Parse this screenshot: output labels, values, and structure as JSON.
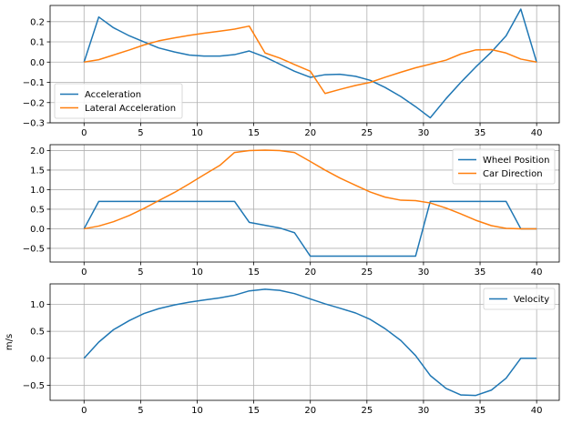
{
  "chart_data": [
    {
      "type": "line",
      "xlim": [
        -3,
        42
      ],
      "ylim": [
        -0.3,
        0.28
      ],
      "xticks": [
        0,
        5,
        10,
        15,
        20,
        25,
        30,
        35,
        40
      ],
      "xtick_labels": [
        "0",
        "5",
        "10",
        "15",
        "20",
        "25",
        "30",
        "35",
        "40"
      ],
      "yticks": [
        -0.3,
        -0.2,
        -0.1,
        0.0,
        0.1,
        0.2
      ],
      "ytick_labels": [
        "−0.3",
        "−0.2",
        "−0.1",
        "0.0",
        "0.1",
        "0.2"
      ],
      "ylabel": "",
      "grid": true,
      "legend_position": "lower-left",
      "series": [
        {
          "name": "Acceleration",
          "color": "#1f77b4",
          "x": [
            0,
            1.3,
            2.6,
            4,
            5.3,
            6.6,
            8,
            9.3,
            10.6,
            12,
            13.3,
            14.6,
            16,
            17.3,
            18.6,
            20,
            21.3,
            22.6,
            24,
            25.3,
            26.6,
            28,
            29.3,
            30.6,
            32,
            33.3,
            34.6,
            36,
            37.3,
            38.6,
            40
          ],
          "y": [
            0.0,
            0.223,
            0.17,
            0.13,
            0.1,
            0.07,
            0.05,
            0.035,
            0.03,
            0.03,
            0.037,
            0.055,
            0.025,
            -0.01,
            -0.045,
            -0.075,
            -0.062,
            -0.06,
            -0.07,
            -0.09,
            -0.125,
            -0.17,
            -0.22,
            -0.275,
            -0.18,
            -0.1,
            -0.025,
            0.05,
            0.13,
            0.262,
            0.0
          ]
        },
        {
          "name": "Lateral Acceleration",
          "color": "#ff7f0e",
          "x": [
            0,
            1.3,
            2.6,
            4,
            5.3,
            6.6,
            8,
            9.3,
            10.6,
            12,
            13.3,
            14.6,
            16,
            17.3,
            18.6,
            20,
            21.3,
            22.6,
            24,
            25.3,
            26.6,
            28,
            29.3,
            30.6,
            32,
            33.3,
            34.6,
            36,
            37.3,
            38.6,
            40
          ],
          "y": [
            0.0,
            0.012,
            0.035,
            0.06,
            0.085,
            0.105,
            0.12,
            0.132,
            0.143,
            0.153,
            0.163,
            0.178,
            0.045,
            0.02,
            -0.012,
            -0.045,
            -0.155,
            -0.135,
            -0.115,
            -0.1,
            -0.075,
            -0.05,
            -0.028,
            -0.01,
            0.01,
            0.04,
            0.06,
            0.062,
            0.045,
            0.015,
            0.0
          ]
        }
      ]
    },
    {
      "type": "line",
      "xlim": [
        -3,
        42
      ],
      "ylim": [
        -0.85,
        2.15
      ],
      "xticks": [
        0,
        5,
        10,
        15,
        20,
        25,
        30,
        35,
        40
      ],
      "xtick_labels": [
        "0",
        "5",
        "10",
        "15",
        "20",
        "25",
        "30",
        "35",
        "40"
      ],
      "yticks": [
        -0.5,
        0.0,
        0.5,
        1.0,
        1.5,
        2.0
      ],
      "ytick_labels": [
        "−0.5",
        "0.0",
        "0.5",
        "1.0",
        "1.5",
        "2.0"
      ],
      "ylabel": "",
      "grid": true,
      "legend_position": "upper-right",
      "series": [
        {
          "name": "Wheel Position",
          "color": "#1f77b4",
          "x": [
            0,
            1.3,
            2.6,
            4,
            5.3,
            6.6,
            8,
            9.3,
            10.6,
            12,
            13.3,
            14.6,
            16,
            17.3,
            18.6,
            20,
            21.3,
            22.6,
            24,
            25.3,
            26.6,
            28,
            29.3,
            30.6,
            32,
            33.3,
            34.6,
            36,
            37.3,
            38.6,
            40
          ],
          "y": [
            0.0,
            0.7,
            0.7,
            0.7,
            0.7,
            0.7,
            0.7,
            0.7,
            0.7,
            0.7,
            0.7,
            0.165,
            0.09,
            0.02,
            -0.1,
            -0.7,
            -0.7,
            -0.7,
            -0.7,
            -0.7,
            -0.7,
            -0.7,
            -0.7,
            0.7,
            0.7,
            0.7,
            0.7,
            0.7,
            0.7,
            0.0,
            0.0
          ]
        },
        {
          "name": "Car Direction",
          "color": "#ff7f0e",
          "x": [
            0,
            1.3,
            2.6,
            4,
            5.3,
            6.6,
            8,
            9.3,
            10.6,
            12,
            13.3,
            14.6,
            16,
            17.3,
            18.6,
            20,
            21.3,
            22.6,
            24,
            25.3,
            26.6,
            28,
            29.3,
            30.6,
            32,
            33.3,
            34.6,
            36,
            37.3,
            38.6,
            40
          ],
          "y": [
            0.0,
            0.07,
            0.18,
            0.34,
            0.52,
            0.72,
            0.93,
            1.15,
            1.38,
            1.62,
            1.95,
            2.0,
            2.01,
            2.0,
            1.95,
            1.72,
            1.5,
            1.3,
            1.11,
            0.94,
            0.81,
            0.73,
            0.72,
            0.66,
            0.53,
            0.38,
            0.22,
            0.08,
            0.01,
            0.0,
            0.0
          ]
        }
      ]
    },
    {
      "type": "line",
      "xlim": [
        -3,
        42
      ],
      "ylim": [
        -0.78,
        1.38
      ],
      "xticks": [
        0,
        5,
        10,
        15,
        20,
        25,
        30,
        35,
        40
      ],
      "xtick_labels": [
        "0",
        "5",
        "10",
        "15",
        "20",
        "25",
        "30",
        "35",
        "40"
      ],
      "yticks": [
        -0.5,
        0.0,
        0.5,
        1.0
      ],
      "ytick_labels": [
        "−0.5",
        "0.0",
        "0.5",
        "1.0"
      ],
      "ylabel": "m/s",
      "grid": true,
      "legend_position": "upper-right",
      "series": [
        {
          "name": "Velocity",
          "color": "#1f77b4",
          "x": [
            0,
            1.3,
            2.6,
            4,
            5.3,
            6.6,
            8,
            9.3,
            10.6,
            12,
            13.3,
            14.6,
            16,
            17.3,
            18.6,
            20,
            21.3,
            22.6,
            24,
            25.3,
            26.6,
            28,
            29.3,
            30.6,
            32,
            33.3,
            34.6,
            36,
            37.3,
            38.6,
            40
          ],
          "y": [
            0.0,
            0.3,
            0.53,
            0.7,
            0.83,
            0.92,
            0.99,
            1.04,
            1.08,
            1.12,
            1.17,
            1.25,
            1.28,
            1.26,
            1.2,
            1.1,
            1.01,
            0.93,
            0.84,
            0.72,
            0.55,
            0.33,
            0.05,
            -0.32,
            -0.56,
            -0.68,
            -0.69,
            -0.59,
            -0.37,
            0.0,
            0.0
          ]
        }
      ]
    }
  ]
}
